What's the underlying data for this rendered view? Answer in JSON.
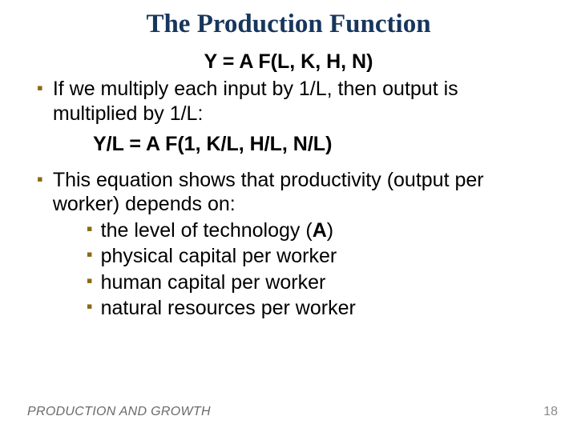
{
  "colors": {
    "title": "#17365d",
    "bullet": "#8b6914",
    "footer": "#6a6a6a",
    "pagenum": "#8a8a8a",
    "background": "#ffffff",
    "text": "#000000"
  },
  "fonts": {
    "title_family": "Times New Roman",
    "body_family": "Arial",
    "title_size_pt": 25,
    "body_size_pt": 19,
    "eq_size_pt": 19
  },
  "title": "The Production Function",
  "equation1": "Y  =  A F(L, K, H, N)",
  "bullets": [
    {
      "text": "If we multiply each input by 1/L, then output is multiplied by 1/L:"
    },
    {
      "text": "This equation shows that productivity (output per worker) depends on:",
      "sub": [
        "the level of technology (A)",
        "physical capital per worker",
        "human capital per worker",
        "natural resources per worker"
      ]
    }
  ],
  "equation2": "Y/L  =  A F(1, K/L, H/L, N/L)",
  "footer": "PRODUCTION AND GROWTH",
  "page_number": "18"
}
